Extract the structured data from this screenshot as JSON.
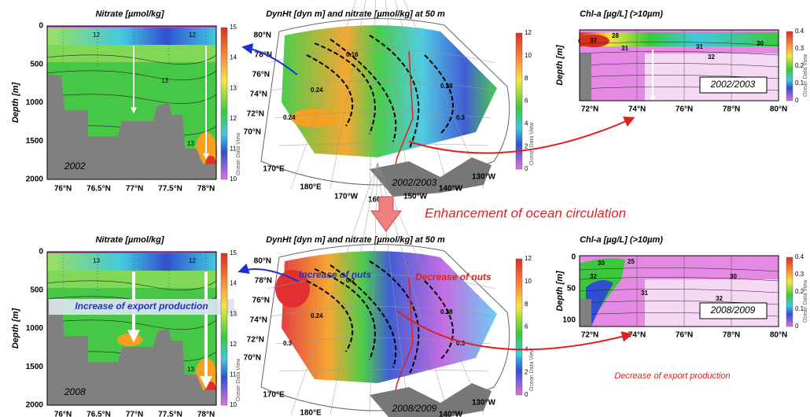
{
  "figure": {
    "headline": "Enhancement of ocean circulation",
    "export_note": "Decrease of export production"
  },
  "panels": [
    {
      "kind": "section",
      "title": "Nitrate [µmol/kg]",
      "y_label": "Depth [m]",
      "yticks": [
        "0",
        "500",
        "1000",
        "1500",
        "2000"
      ],
      "xticks": [
        "76°N",
        "76.5°N",
        "77°N",
        "77.5°N",
        "78°N"
      ],
      "colorbar": [
        "15",
        "14",
        "13",
        "12",
        "11",
        "10"
      ],
      "contours": [
        "12",
        "12",
        "13",
        "13"
      ],
      "year": "2002",
      "watermark": "Ocean Data View"
    },
    {
      "kind": "map",
      "title": "DynHt [dyn m] and nitrate [µmol/kg] at 50 m",
      "lat": [
        "80°N",
        "78°N",
        "76°N",
        "74°N",
        "72°N",
        "70°N"
      ],
      "lon": [
        "170°E",
        "180°E",
        "170°W",
        "160°W",
        "150°W",
        "140°W",
        "130°W"
      ],
      "colorbar": [
        "12",
        "10",
        "8",
        "6",
        "4",
        "2",
        "0"
      ],
      "contours": [
        "0.16",
        "0.24",
        "0.28",
        "0.3",
        "0.24"
      ],
      "year": "2002/2003",
      "watermark": "Ocean Data View"
    },
    {
      "kind": "chl",
      "title": "Chl-a [µg/L] (>10µm)",
      "y_label": "Depth [m]",
      "xticks": [
        "72°N",
        "74°N",
        "76°N",
        "78°N",
        "80°N"
      ],
      "colorbar": [
        "0.4",
        "0.3",
        "0.2",
        "0.1",
        "0"
      ],
      "contours": [
        "32",
        "28",
        "31",
        "31",
        "30",
        "32"
      ],
      "year": "2002/2003",
      "watermark": "Ocean Data View"
    },
    {
      "kind": "section",
      "title": "Nitrate [µmol/kg]",
      "y_label": "Depth [m]",
      "yticks": [
        "0",
        "500",
        "1000",
        "1500",
        "2000"
      ],
      "xticks": [
        "76°N",
        "76.5°N",
        "77°N",
        "77.5°N",
        "78°N"
      ],
      "colorbar": [
        "15",
        "14",
        "13",
        "12",
        "11",
        "10"
      ],
      "contours": [
        "13",
        "12",
        "13",
        "13"
      ],
      "year": "2008",
      "watermark": "Ocean Data View",
      "annotation": "Increase of export production"
    },
    {
      "kind": "map",
      "title": "DynHt [dyn m] and nitrate [µmol/kg] at 50 m",
      "lat": [
        "80°N",
        "78°N",
        "76°N",
        "74°N",
        "72°N",
        "70°N"
      ],
      "lon": [
        "170°E",
        "180°E",
        "170°W",
        "160°W",
        "150°W",
        "140°W",
        "130°W"
      ],
      "colorbar": [
        "12",
        "10",
        "8",
        "6",
        "4",
        "2",
        "0"
      ],
      "contours": [
        "0.2",
        "0.24",
        "0.28",
        "0.3",
        "0.3"
      ],
      "year": "2008/2009",
      "watermark": "Ocean Data View",
      "annotations": [
        "Increase of nuts",
        "Decrease of nuts"
      ]
    },
    {
      "kind": "chl",
      "title": "Chl-a [µg/L] (>10µm)",
      "y_label": "Depth [m]",
      "yticks": [
        "0",
        "50",
        "100"
      ],
      "xticks": [
        "72°N",
        "74°N",
        "76°N",
        "78°N",
        "80°N"
      ],
      "colorbar": [
        "0.4",
        "0.3",
        "0.2",
        "0.1",
        "0"
      ],
      "contours": [
        "30",
        "32",
        "25",
        "31",
        "30",
        "32"
      ],
      "year": "2008/2009",
      "watermark": "Ocean Data View"
    }
  ]
}
